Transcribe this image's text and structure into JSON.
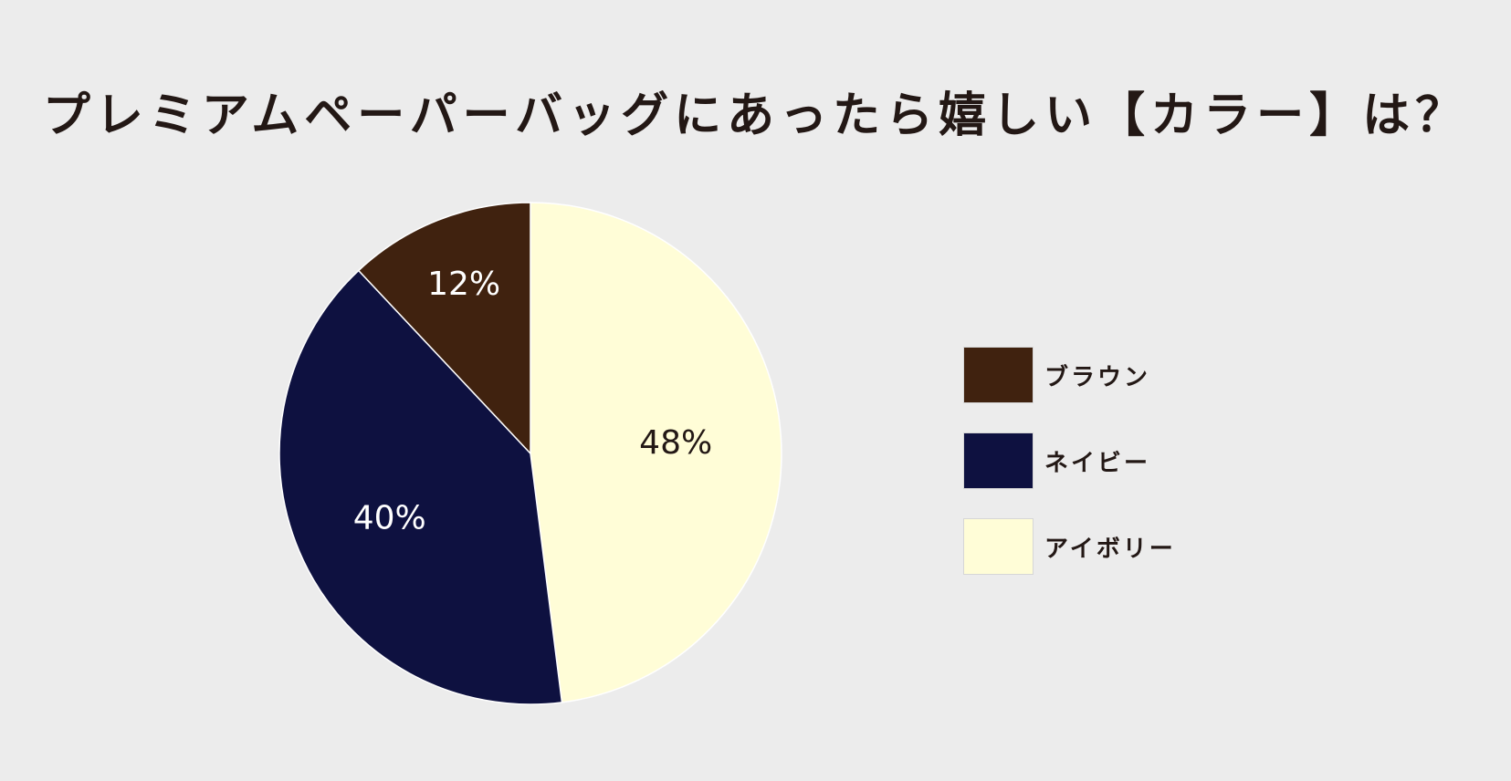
{
  "chart_data": {
    "type": "pie",
    "title": "プレミアムペーパーバッグにあったら嬉しい【カラー】は？",
    "categories": [
      "アイボリー",
      "ネイビー",
      "ブラウン"
    ],
    "values": [
      48,
      40,
      12
    ],
    "data_labels": [
      "48%",
      "40%",
      "12%"
    ],
    "colors": [
      "#fffdd7",
      "#0e1140",
      "#40220f"
    ],
    "label_colors": [
      "#231815",
      "#ffffff",
      "#ffffff"
    ],
    "legend_position": "right",
    "legend": [
      {
        "label": "ブラウン",
        "color": "#40220f"
      },
      {
        "label": "ネイビー",
        "color": "#0e1140"
      },
      {
        "label": "アイボリー",
        "color": "#fffdd7"
      }
    ]
  }
}
